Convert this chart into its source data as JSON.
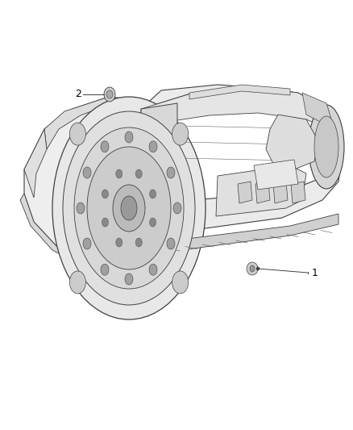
{
  "background_color": "#ffffff",
  "fig_width": 4.38,
  "fig_height": 5.33,
  "dpi": 100,
  "label1": "1",
  "label2": "2",
  "text_color": "#000000",
  "line_color": "#000000",
  "font_size": 9,
  "body_lc": "#404040",
  "body_fc": "#f2f2f2",
  "shadow_fc": "#d8d8d8",
  "dark_fc": "#c8c8c8"
}
